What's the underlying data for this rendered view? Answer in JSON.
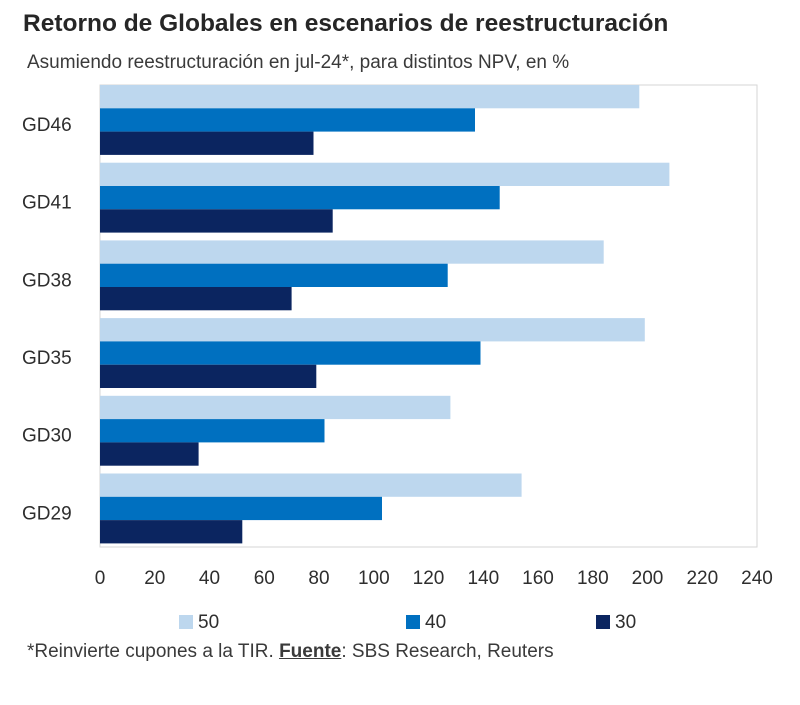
{
  "chart_data": {
    "type": "bar",
    "orientation": "horizontal",
    "title": "Retorno de Globales en escenarios de reestructuración",
    "subtitle": "Asumiendo reestructuración en jul-24*, para distintos NPV, en %",
    "categories": [
      "GD46",
      "GD41",
      "GD38",
      "GD35",
      "GD30",
      "GD29"
    ],
    "series": [
      {
        "name": "50",
        "color": "#bdd7ee",
        "values": [
          197,
          208,
          184,
          199,
          128,
          154
        ]
      },
      {
        "name": "40",
        "color": "#0070c0",
        "values": [
          137,
          146,
          127,
          139,
          82,
          103
        ]
      },
      {
        "name": "30",
        "color": "#0b2560",
        "values": [
          78,
          85,
          70,
          79,
          36,
          52
        ]
      }
    ],
    "xlim": [
      0,
      240
    ],
    "xticks": [
      "0",
      "20",
      "40",
      "60",
      "80",
      "100",
      "120",
      "140",
      "160",
      "180",
      "200",
      "220",
      "240"
    ],
    "legend_position": "bottom",
    "grid": false
  },
  "footnote": {
    "note": "*Reinvierte cupones a la TIR. ",
    "source_label": "Fuente",
    "source_text": ": SBS Research, Reuters"
  }
}
